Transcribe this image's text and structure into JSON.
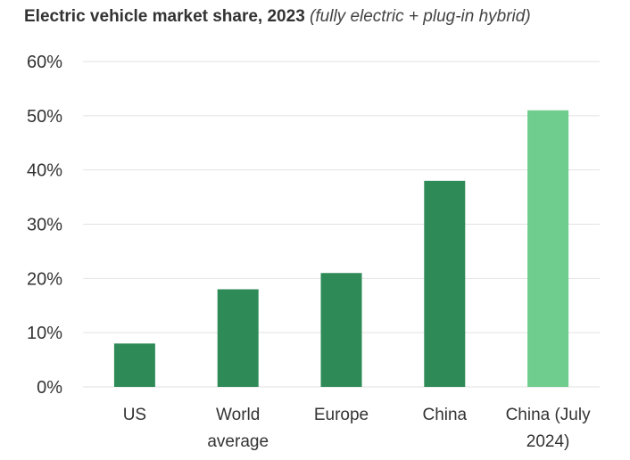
{
  "chart_data": {
    "type": "bar",
    "title": "Electric vehicle market share, 2023",
    "subtitle": "(fully electric + plug-in hybrid)",
    "xlabel": "",
    "ylabel": "",
    "ylim": [
      0,
      60
    ],
    "yticks": [
      0,
      10,
      20,
      30,
      40,
      50,
      60
    ],
    "ytick_labels": [
      "0%",
      "10%",
      "20%",
      "30%",
      "40%",
      "50%",
      "60%"
    ],
    "grid": true,
    "categories": [
      [
        "US"
      ],
      [
        "World",
        "average"
      ],
      [
        "Europe"
      ],
      [
        "China"
      ],
      [
        "China (July",
        "2024)"
      ]
    ],
    "values": [
      8,
      18,
      21,
      38,
      51
    ],
    "colors": [
      "#2e8b57",
      "#2e8b57",
      "#2e8b57",
      "#2e8b57",
      "#6fcd8d"
    ],
    "grid_color": "#e2e2e2"
  }
}
